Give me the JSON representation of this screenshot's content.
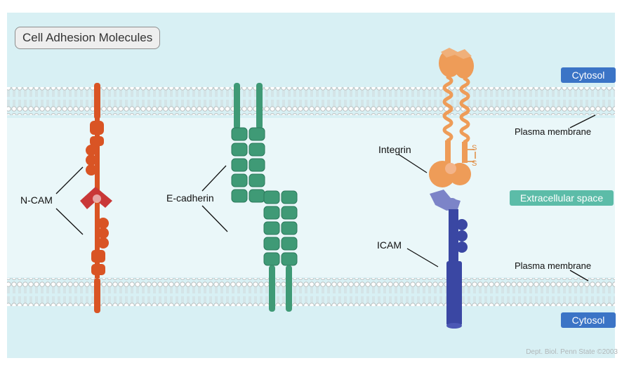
{
  "title": "Cell Adhesion Molecules",
  "regions": {
    "cytosol_top": "Cytosol",
    "cytosol_bottom": "Cytosol",
    "extracellular": "Extracellular space",
    "membrane_top": "Plasma membrane",
    "membrane_bottom": "Plasma membrane"
  },
  "molecules": {
    "ncam": "N-CAM",
    "ecadherin": "E-cadherin",
    "integrin": "Integrin",
    "icam": "ICAM"
  },
  "disulfide": [
    "S",
    "S"
  ],
  "credit": "Dept. Biol. Penn State ©2003",
  "colors": {
    "background": "#d8f0f4",
    "membrane_head": "#cfd3d3",
    "ncam": "#d95424",
    "ncam_hinge": "#c93838",
    "ecadherin": "#3f9a76",
    "integrin": "#ee9c58",
    "icam_light": "#7c84c8",
    "icam": "#3a47a3",
    "cytosol_badge": "#3b74c6",
    "extracellular_badge": "#5cbca8"
  }
}
